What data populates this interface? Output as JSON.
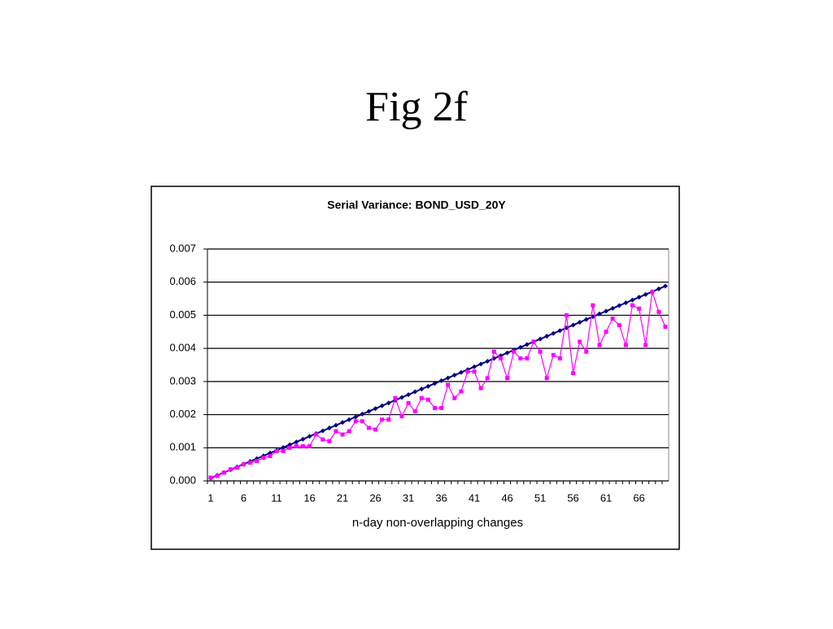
{
  "slide_title": "Fig 2f",
  "chart_data": {
    "type": "line",
    "title": "Serial Variance: BOND_USD_20Y",
    "x_label": "n-day non-overlapping changes",
    "categories": [
      "1",
      null,
      null,
      null,
      null,
      "6",
      null,
      null,
      null,
      null,
      "11",
      null,
      null,
      null,
      null,
      "16",
      null,
      null,
      null,
      null,
      "21",
      null,
      null,
      null,
      null,
      "26",
      null,
      null,
      null,
      null,
      "31",
      null,
      null,
      null,
      null,
      "36",
      null,
      null,
      null,
      null,
      "41",
      null,
      null,
      null,
      null,
      "46",
      null,
      null,
      null,
      null,
      "51",
      null,
      null,
      null,
      null,
      "56",
      null,
      null,
      null,
      null,
      "61",
      null,
      null,
      null,
      null,
      "66",
      null,
      null,
      null,
      null
    ],
    "series": [
      {
        "color": "#000080",
        "marker": "diamond",
        "values": [
          8.4e-05,
          0.000168,
          0.000252,
          0.000336,
          0.00042,
          0.000504,
          0.000588,
          0.000672,
          0.000756,
          0.00084,
          0.000924,
          0.001008,
          0.001092,
          0.001176,
          0.00126,
          0.001344,
          0.001428,
          0.001512,
          0.001596,
          0.00168,
          0.001764,
          0.001848,
          0.001932,
          0.002016,
          0.0021,
          0.002184,
          0.002268,
          0.002352,
          0.002436,
          0.00252,
          0.002604,
          0.002688,
          0.002772,
          0.002856,
          0.00294,
          0.003024,
          0.003108,
          0.003192,
          0.003276,
          0.00336,
          0.003444,
          0.003528,
          0.003612,
          0.003696,
          0.00378,
          0.003864,
          0.003948,
          0.004032,
          0.004116,
          0.0042,
          0.004284,
          0.004368,
          0.004452,
          0.004536,
          0.00462,
          0.004704,
          0.004788,
          0.004872,
          0.004956,
          0.00504,
          0.005124,
          0.005208,
          0.005292,
          0.005376,
          0.00546,
          0.005544,
          0.005628,
          0.005712,
          0.005796,
          0.00588
        ]
      },
      {
        "color": "#ff00ff",
        "marker": "square",
        "values": [
          0.0001,
          0.00015,
          0.00025,
          0.00035,
          0.0004,
          0.0005,
          0.00055,
          0.0006,
          0.0007,
          0.00075,
          0.0009,
          0.0009,
          0.001,
          0.00105,
          0.00105,
          0.00105,
          0.0014,
          0.00125,
          0.0012,
          0.0015,
          0.0014,
          0.0015,
          0.0018,
          0.0018,
          0.0016,
          0.00155,
          0.00185,
          0.00185,
          0.0025,
          0.00195,
          0.00235,
          0.0021,
          0.0025,
          0.00245,
          0.0022,
          0.0022,
          0.0029,
          0.0025,
          0.0027,
          0.0033,
          0.0033,
          0.0028,
          0.0031,
          0.0039,
          0.0037,
          0.0031,
          0.0039,
          0.0037,
          0.0037,
          0.0042,
          0.0039,
          0.0031,
          0.0038,
          0.0037,
          0.005,
          0.00325,
          0.0042,
          0.0039,
          0.0053,
          0.0041,
          0.0045,
          0.0049,
          0.0047,
          0.0041,
          0.0053,
          0.0052,
          0.0041,
          0.0057,
          0.0051,
          0.00465
        ]
      }
    ],
    "ylim": [
      0,
      0.007
    ],
    "yticks": [
      {
        "value": 0,
        "label": "0.000"
      },
      0.001,
      0.002,
      0.003,
      0.004,
      0.005,
      0.006,
      0.007
    ],
    "grid": true
  }
}
